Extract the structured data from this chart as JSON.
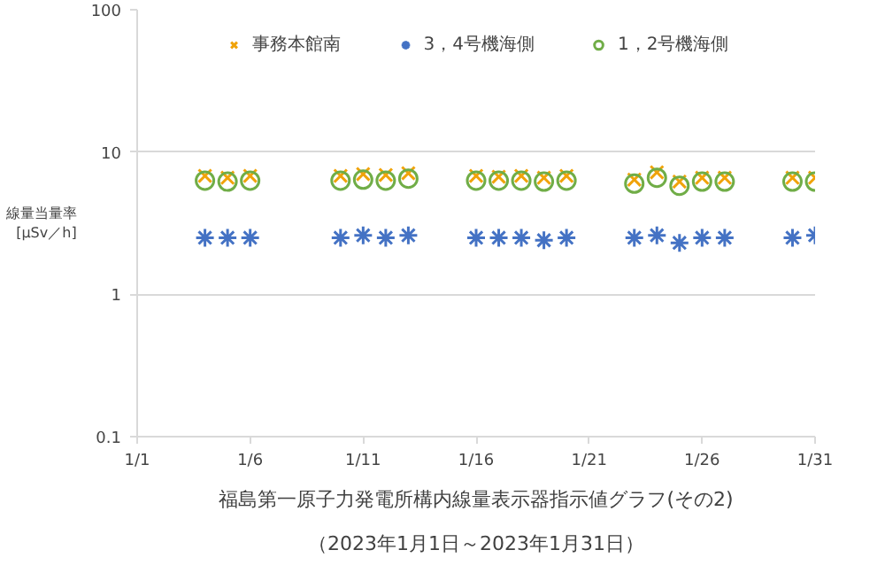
{
  "chart_data": {
    "type": "scatter",
    "title": "福島第一原子力発電所構内線量表示器指示値グラフ(その2)",
    "subtitle": "（2023年1月1日～2023年1月31日）",
    "ylabel": "線量当量率\n[μSv／h]",
    "x": [
      "2023-01-04",
      "2023-01-05",
      "2023-01-06",
      "2023-01-10",
      "2023-01-11",
      "2023-01-12",
      "2023-01-13",
      "2023-01-16",
      "2023-01-17",
      "2023-01-18",
      "2023-01-19",
      "2023-01-20",
      "2023-01-23",
      "2023-01-24",
      "2023-01-25",
      "2023-01-26",
      "2023-01-27",
      "2023-01-30",
      "2023-01-31"
    ],
    "series": [
      {
        "name": "事務本館南",
        "color": "#f0a30a",
        "marker": "cross",
        "values": [
          6.8,
          6.6,
          6.8,
          6.8,
          7.0,
          6.9,
          7.1,
          6.8,
          6.7,
          6.8,
          6.6,
          6.8,
          6.4,
          7.2,
          6.2,
          6.6,
          6.6,
          6.6,
          6.6
        ]
      },
      {
        "name": "3，4号機海側",
        "color": "#4472c4",
        "marker": "cross",
        "values": [
          2.5,
          2.5,
          2.5,
          2.5,
          2.6,
          2.5,
          2.6,
          2.5,
          2.5,
          2.5,
          2.4,
          2.5,
          2.5,
          2.6,
          2.3,
          2.5,
          2.5,
          2.5,
          2.6
        ]
      },
      {
        "name": "1，2号機海側",
        "color": "#70ad47",
        "marker": "circle",
        "values": [
          6.3,
          6.2,
          6.3,
          6.3,
          6.4,
          6.3,
          6.5,
          6.3,
          6.3,
          6.3,
          6.2,
          6.3,
          6.0,
          6.6,
          5.8,
          6.2,
          6.2,
          6.2,
          6.2
        ]
      }
    ],
    "xlim": [
      "2023-01-01",
      "2023-01-31"
    ],
    "xticks": [
      {
        "value": "2023-01-01",
        "label": "1/1"
      },
      {
        "value": "2023-01-06",
        "label": "1/6"
      },
      {
        "value": "2023-01-11",
        "label": "1/11"
      },
      {
        "value": "2023-01-16",
        "label": "1/16"
      },
      {
        "value": "2023-01-21",
        "label": "1/21"
      },
      {
        "value": "2023-01-26",
        "label": "1/26"
      },
      {
        "value": "2023-01-31",
        "label": "1/31"
      }
    ],
    "ylim": [
      0.1,
      100
    ],
    "yticks": [
      0.1,
      1,
      10,
      100
    ],
    "log": true,
    "grid": "y",
    "legend": "top"
  }
}
